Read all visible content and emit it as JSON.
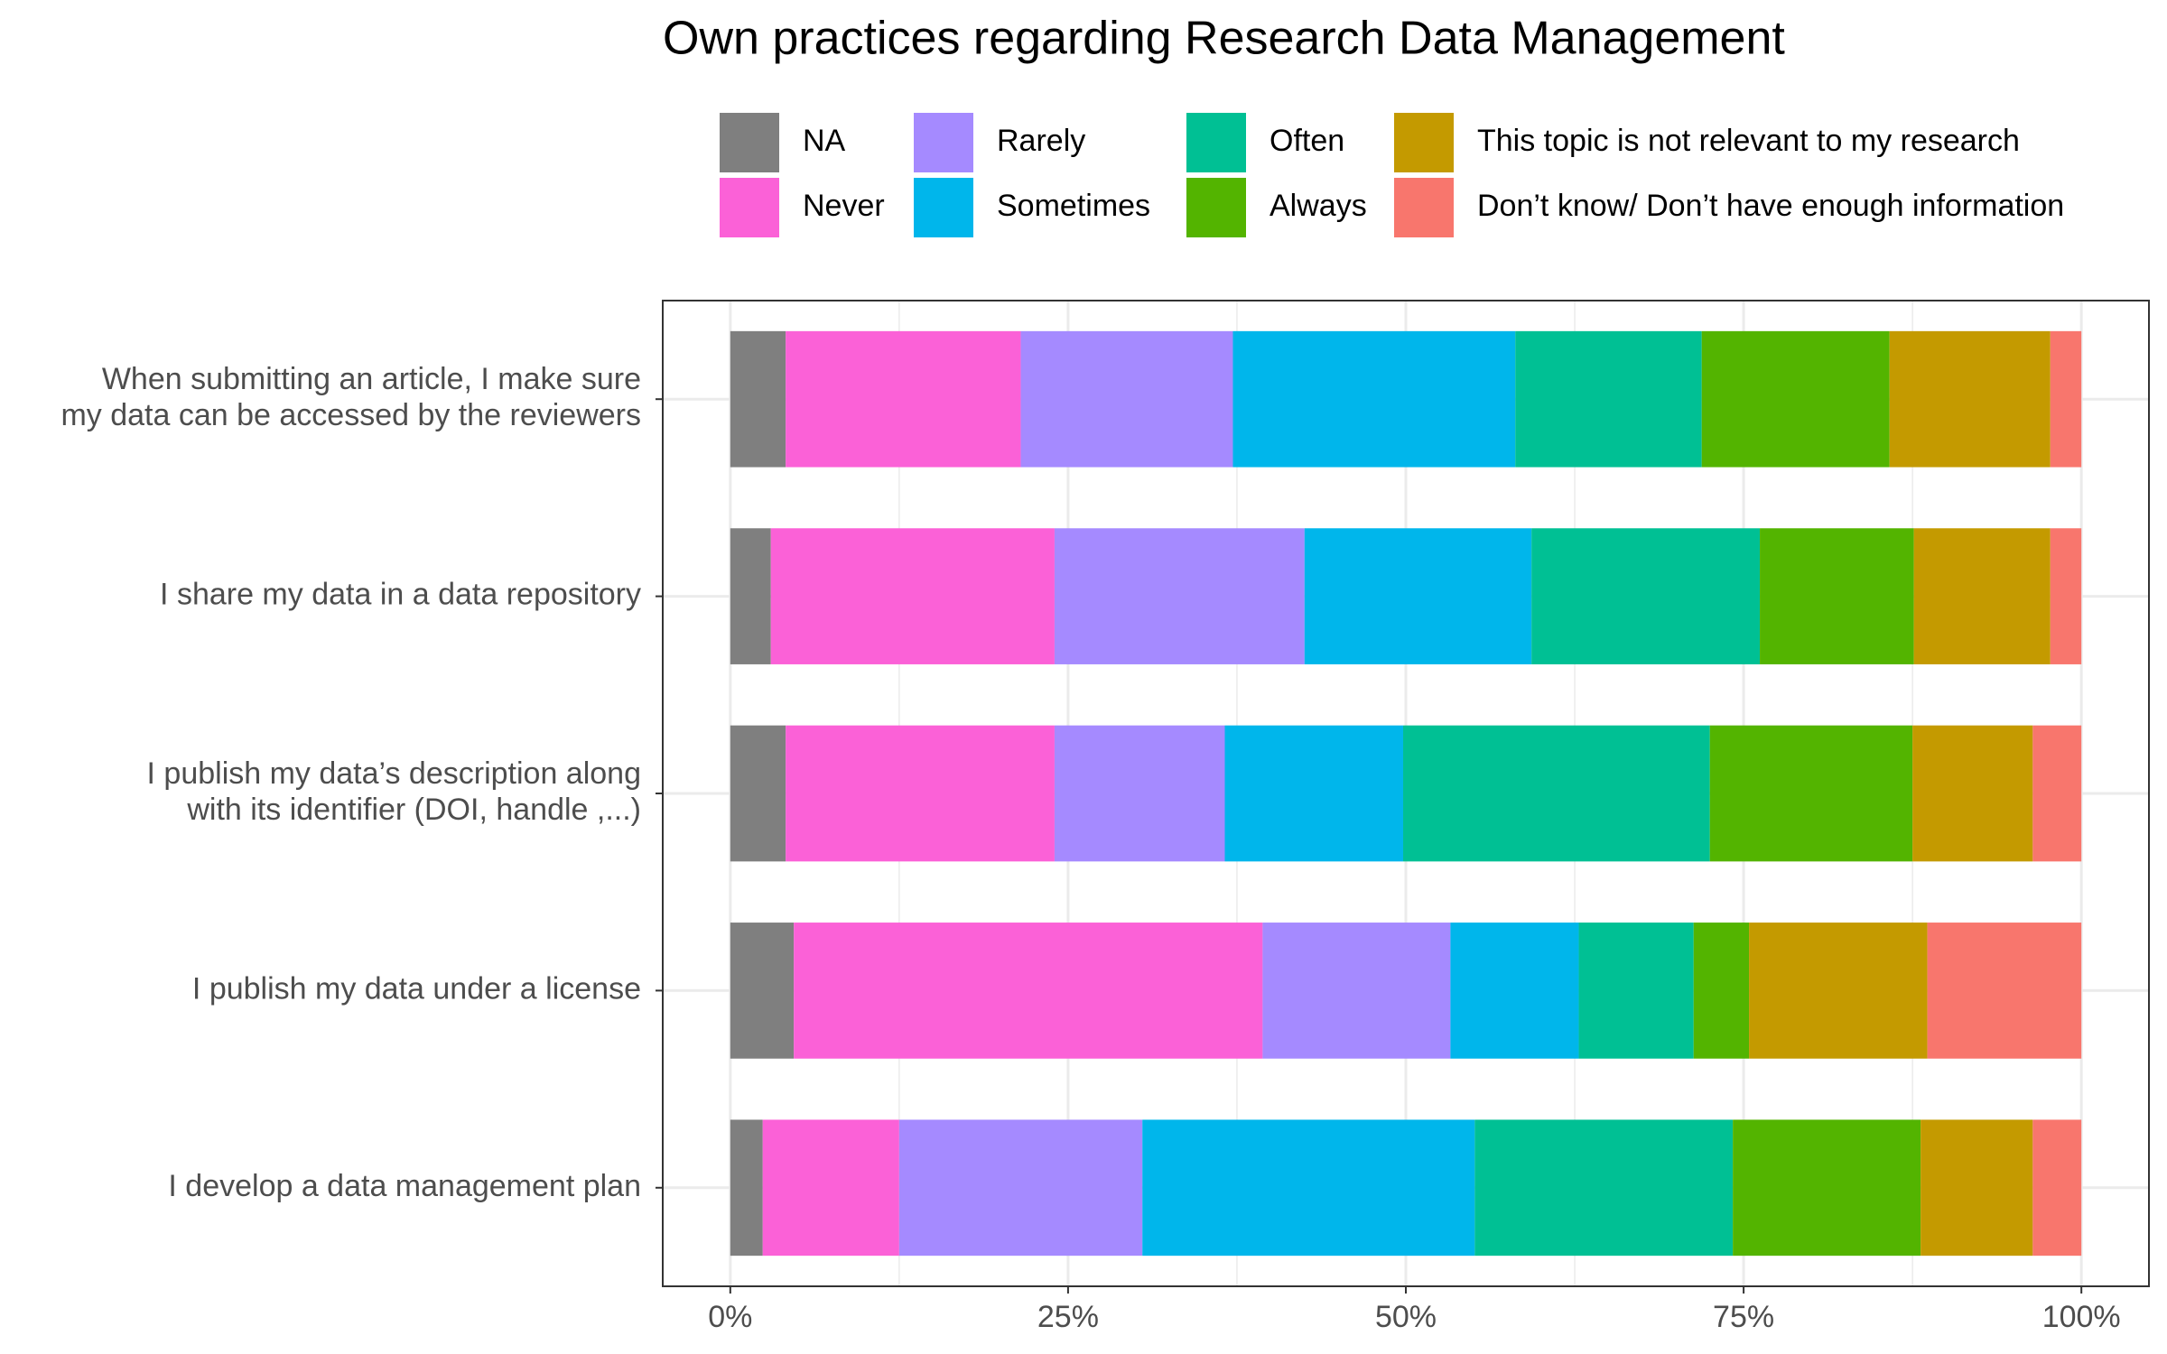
{
  "chart_data": {
    "type": "stacked_barh",
    "title": "Own practices regarding Research Data Management",
    "categories": [
      "When submitting an article, I make sure\nmy data can be accessed by the reviewers",
      "I share my data in a data repository",
      "I publish my data’s description along\nwith its identifier (DOI, handle ,...)",
      "I publish my data under a license",
      "I develop a data management plan"
    ],
    "series": [
      {
        "name": "NA",
        "color": "#7f7f7f",
        "values": [
          4.1,
          3.0,
          4.1,
          4.7,
          2.4
        ]
      },
      {
        "name": "Never",
        "color": "#fb61d7",
        "values": [
          17.4,
          21.0,
          19.9,
          34.7,
          10.1
        ]
      },
      {
        "name": "Rarely",
        "color": "#a58aff",
        "values": [
          15.7,
          18.5,
          12.6,
          13.9,
          18.0
        ]
      },
      {
        "name": "Sometimes",
        "color": "#00b6eb",
        "values": [
          20.9,
          16.8,
          13.2,
          9.5,
          24.6
        ]
      },
      {
        "name": "Often",
        "color": "#00c094",
        "values": [
          13.8,
          16.9,
          22.7,
          8.5,
          19.1
        ]
      },
      {
        "name": "Always",
        "color": "#53b400",
        "values": [
          13.9,
          11.4,
          15.0,
          4.1,
          13.9
        ]
      },
      {
        "name": "This topic is not relevant to my research",
        "color": "#c49a00",
        "values": [
          11.9,
          10.1,
          8.9,
          13.2,
          8.3
        ]
      },
      {
        "name": "Don’t know/ Don’t have enough information",
        "color": "#f8766d",
        "values": [
          2.3,
          2.3,
          3.6,
          11.4,
          3.6
        ]
      }
    ],
    "xlim": [
      -5,
      105
    ],
    "xticks": [
      {
        "value": 0,
        "label": "0%"
      },
      {
        "value": 25,
        "label": "25%"
      },
      {
        "value": 50,
        "label": "50%"
      },
      {
        "value": 75,
        "label": "75%"
      },
      {
        "value": 100,
        "label": "100%"
      }
    ],
    "minor_xticks": [
      12.5,
      37.5,
      62.5,
      87.5
    ],
    "grid": true,
    "legend": "top"
  }
}
